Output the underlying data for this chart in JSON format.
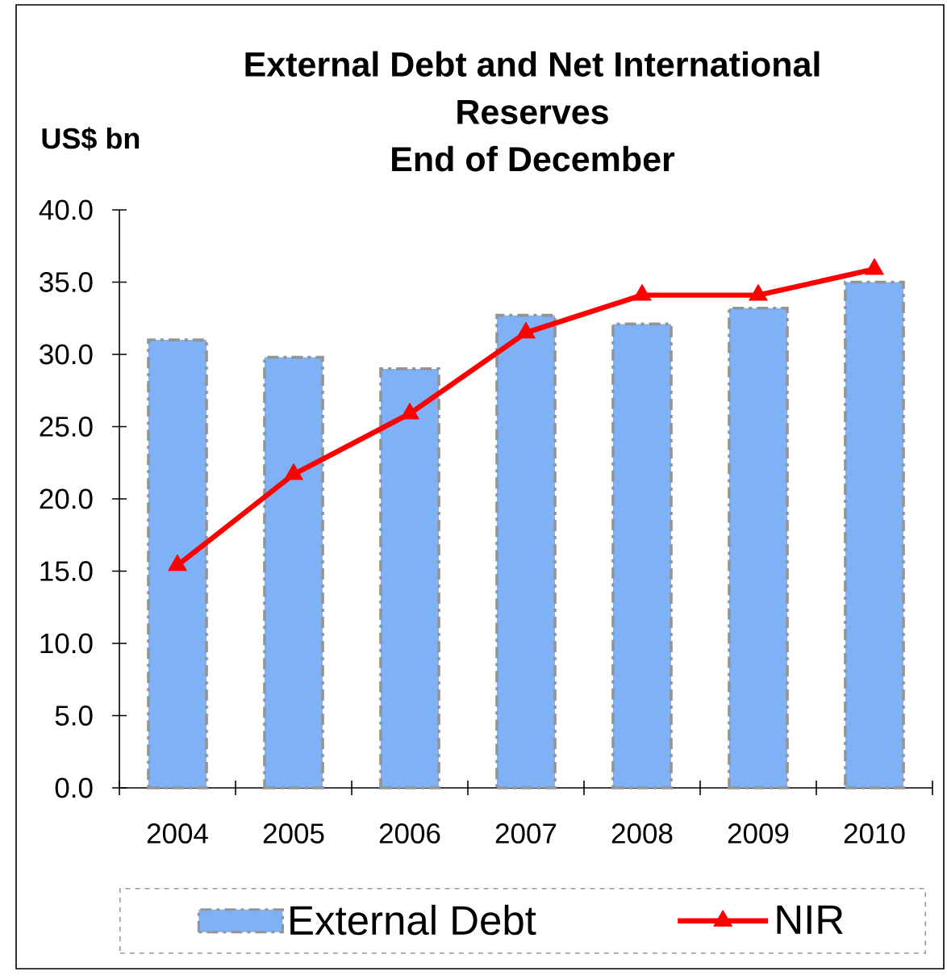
{
  "chart_data": {
    "type": "bar",
    "title": "External Debt and Net International Reserves",
    "subtitle": "End of December",
    "ylabel": "US$ bn",
    "categories": [
      "2004",
      "2005",
      "2006",
      "2007",
      "2008",
      "2009",
      "2010"
    ],
    "series": [
      {
        "name": "External Debt",
        "color": "#7fb1f6",
        "values": [
          31.0,
          29.8,
          29.0,
          32.7,
          32.1,
          33.2,
          35.0
        ]
      },
      {
        "name": "NIR",
        "type": "line",
        "color": "#ff0000",
        "marker": "triangle",
        "line_style": "solid",
        "values": [
          15.4,
          21.7,
          25.9,
          31.5,
          34.1,
          34.1,
          35.9
        ]
      }
    ],
    "ylim": [
      0,
      40
    ],
    "yticks": [
      {
        "value": 0,
        "label": "0.0"
      },
      {
        "value": 5,
        "label": "5.0"
      },
      {
        "value": 10,
        "label": "10.0"
      },
      {
        "value": 15,
        "label": "15.0"
      },
      {
        "value": 20,
        "label": "20.0"
      },
      {
        "value": 25,
        "label": "25.0"
      },
      {
        "value": 30,
        "label": "30.0"
      },
      {
        "value": 35,
        "label": "35.0"
      },
      {
        "value": 40,
        "label": "40.0"
      }
    ],
    "legend": "bottom",
    "grid": false
  }
}
